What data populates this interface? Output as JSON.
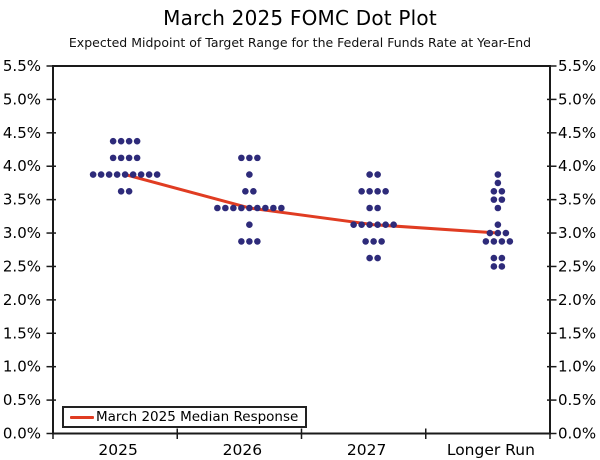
{
  "chart_data": {
    "type": "scatter",
    "title": "March 2025 FOMC Dot Plot",
    "subtitle": "Expected Midpoint of Target Range for the Federal Funds Rate at Year-End",
    "categories": [
      "2025",
      "2026",
      "2027",
      "Longer Run"
    ],
    "ylim": [
      0,
      5.5
    ],
    "ytick_labels": [
      "5.5%",
      "5.0%",
      "4.5%",
      "4.0%",
      "3.5%",
      "3.0%",
      "2.5%",
      "2.0%",
      "1.5%",
      "1.0%",
      "0.5%",
      "0.0%"
    ],
    "y_axis_labels_on_both_sides": true,
    "grid": false,
    "distributions": [
      {
        "category": "2025",
        "rows": [
          {
            "rate": 4.375,
            "count": 4
          },
          {
            "rate": 4.125,
            "count": 4
          },
          {
            "rate": 3.875,
            "count": 9
          },
          {
            "rate": 3.625,
            "count": 2
          }
        ]
      },
      {
        "category": "2026",
        "rows": [
          {
            "rate": 4.125,
            "count": 3
          },
          {
            "rate": 3.875,
            "count": 1
          },
          {
            "rate": 3.625,
            "count": 2
          },
          {
            "rate": 3.375,
            "count": 9
          },
          {
            "rate": 3.125,
            "count": 1
          },
          {
            "rate": 2.875,
            "count": 3
          }
        ]
      },
      {
        "category": "2027",
        "rows": [
          {
            "rate": 3.875,
            "count": 2
          },
          {
            "rate": 3.625,
            "count": 4
          },
          {
            "rate": 3.375,
            "count": 2
          },
          {
            "rate": 3.125,
            "count": 6
          },
          {
            "rate": 2.875,
            "count": 3
          },
          {
            "rate": 2.625,
            "count": 2
          }
        ]
      },
      {
        "category": "Longer Run",
        "rows": [
          {
            "rate": 3.875,
            "count": 1
          },
          {
            "rate": 3.75,
            "count": 1
          },
          {
            "rate": 3.625,
            "count": 2
          },
          {
            "rate": 3.5,
            "count": 2
          },
          {
            "rate": 3.375,
            "count": 1
          },
          {
            "rate": 3.125,
            "count": 1
          },
          {
            "rate": 3.0,
            "count": 3
          },
          {
            "rate": 2.875,
            "count": 4
          },
          {
            "rate": 2.625,
            "count": 2
          },
          {
            "rate": 2.5,
            "count": 2
          }
        ]
      }
    ],
    "median_series": {
      "name": "March 2025 Median Response",
      "values": [
        3.875,
        3.375,
        3.125,
        3.0
      ]
    },
    "legend": {
      "label": "March 2025 Median Response",
      "position": "bottom-left"
    },
    "colors": {
      "dot": "#2e2b7a",
      "median": "#e03c22",
      "axis": "#1a1a1a",
      "text": "#000000"
    }
  }
}
